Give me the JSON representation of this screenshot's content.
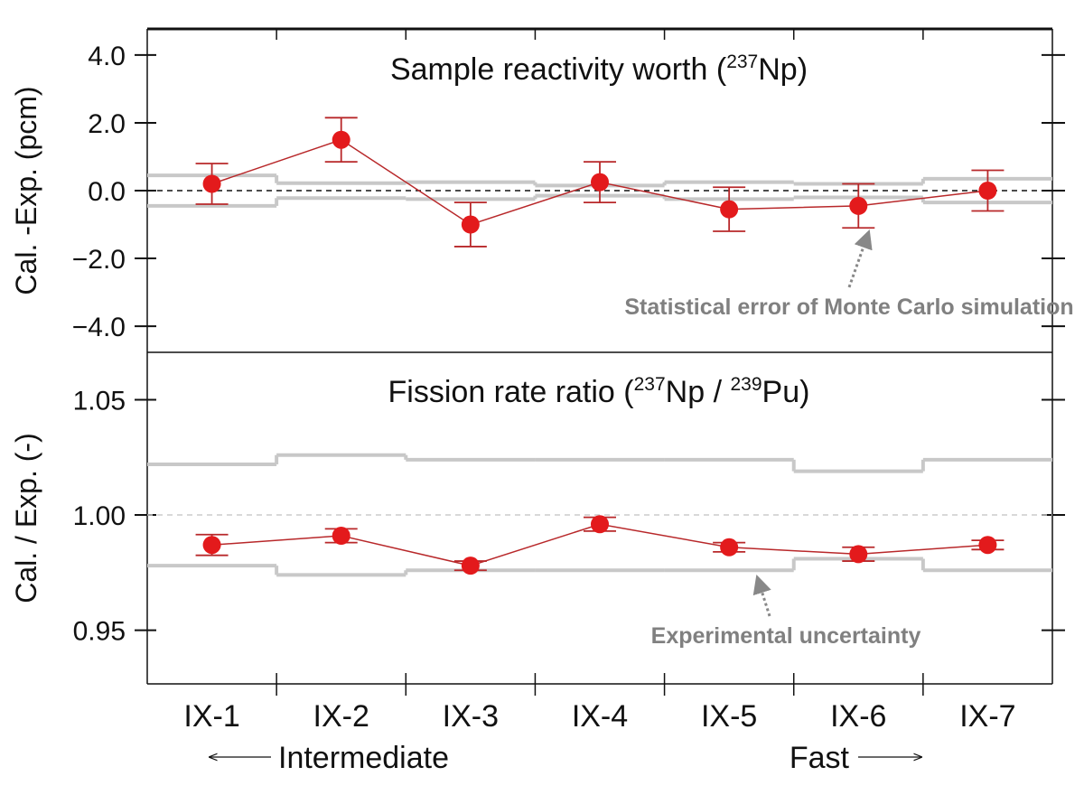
{
  "chart_data": [
    {
      "type": "errorbar",
      "title_segments": [
        {
          "text": "Sample reactivity worth (",
          "sup": false
        },
        {
          "text": "237",
          "sup": true
        },
        {
          "text": "Np)",
          "sup": false
        }
      ],
      "y_label": "Cal. -Exp. (pcm)",
      "values": [
        0.2,
        1.5,
        -1.0,
        0.25,
        -0.55,
        -0.45,
        0.0
      ],
      "errors": [
        0.6,
        0.65,
        0.65,
        0.6,
        0.65,
        0.65,
        0.6
      ],
      "band": [
        0.45,
        0.22,
        0.25,
        0.15,
        0.25,
        0.2,
        0.35
      ],
      "refline": 0,
      "color": "#e31a1c",
      "line_color": "#b8282a",
      "band_color": "#c8c8c8",
      "ylim": [
        -4.77,
        4.77
      ],
      "yticks": [
        {
          "value": -4,
          "label": "−4.0"
        },
        {
          "value": -2,
          "label": "−2.0"
        },
        {
          "value": 0,
          "label": "0.0"
        },
        {
          "value": 2,
          "label": "2.0"
        },
        {
          "value": 4,
          "label": "4.0"
        }
      ],
      "annotation": "Statistical error of Monte Carlo simulation"
    },
    {
      "type": "errorbar",
      "title_segments": [
        {
          "text": "Fission rate ratio (",
          "sup": false
        },
        {
          "text": "237",
          "sup": true
        },
        {
          "text": "Np / ",
          "sup": false
        },
        {
          "text": "239",
          "sup": true
        },
        {
          "text": "Pu)",
          "sup": false
        }
      ],
      "y_label": "Cal. / Exp. (-)",
      "categories": [
        "IX-1",
        "IX-2",
        "IX-3",
        "IX-4",
        "IX-5",
        "IX-6",
        "IX-7"
      ],
      "values": [
        0.987,
        0.991,
        0.978,
        0.996,
        0.986,
        0.983,
        0.987
      ],
      "errors": [
        0.0045,
        0.003,
        0.002,
        0.003,
        0.002,
        0.003,
        0.002
      ],
      "band": [
        0.022,
        0.026,
        0.024,
        0.024,
        0.024,
        0.019,
        0.024
      ],
      "refline": 1,
      "color": "#e31a1c",
      "line_color": "#b8282a",
      "band_color": "#c8c8c8",
      "ylim": [
        0.9267,
        1.0706
      ],
      "yticks": [
        0.95,
        {
          "value": 1,
          "label": "1.00"
        },
        1.05
      ],
      "annotation": "Experimental uncertainty",
      "x_notes": [
        "Intermediate",
        "Fast"
      ]
    }
  ]
}
